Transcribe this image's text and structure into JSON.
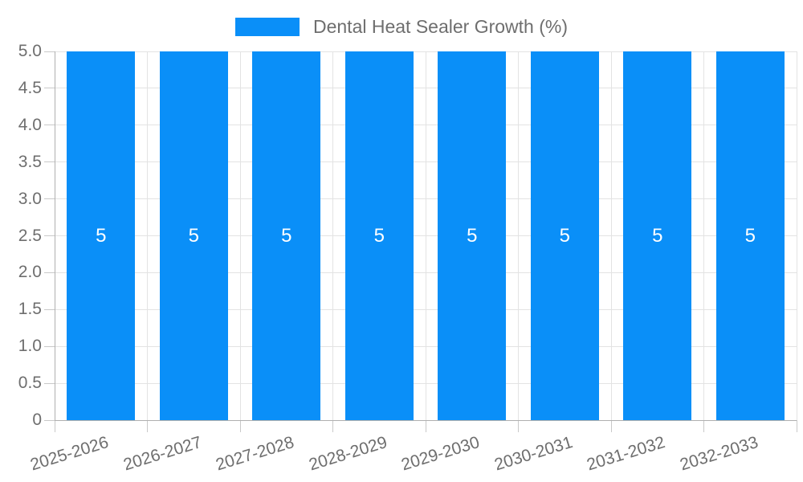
{
  "chart_data": {
    "type": "bar",
    "title": "Dental Heat Sealer Growth (%)",
    "legend": {
      "label": "Dental Heat Sealer Growth (%)",
      "position": "top"
    },
    "categories": [
      "2025-2026",
      "2026-2027",
      "2027-2028",
      "2028-2029",
      "2029-2030",
      "2030-2031",
      "2031-2032",
      "2032-2033"
    ],
    "series": [
      {
        "name": "Dental Heat Sealer Growth (%)",
        "values": [
          5,
          5,
          5,
          5,
          5,
          5,
          5,
          5
        ]
      }
    ],
    "bar_value_labels": [
      "5",
      "5",
      "5",
      "5",
      "5",
      "5",
      "5",
      "5"
    ],
    "xlabel": "",
    "ylabel": "",
    "ylim": [
      0,
      5
    ],
    "y_ticks": [
      "5.0",
      "4.5",
      "4.0",
      "3.5",
      "3.0",
      "2.5",
      "2.0",
      "1.5",
      "1.0",
      "0.5",
      "0"
    ],
    "grid": true,
    "x_label_rotation_deg": -17,
    "colors": {
      "bar": "#0a8ff8",
      "axis_text": "#6e6e6e",
      "bar_value_text": "#ffffff",
      "grid_line": "#e3e3e3",
      "axis_line": "#b0b0b0"
    }
  }
}
